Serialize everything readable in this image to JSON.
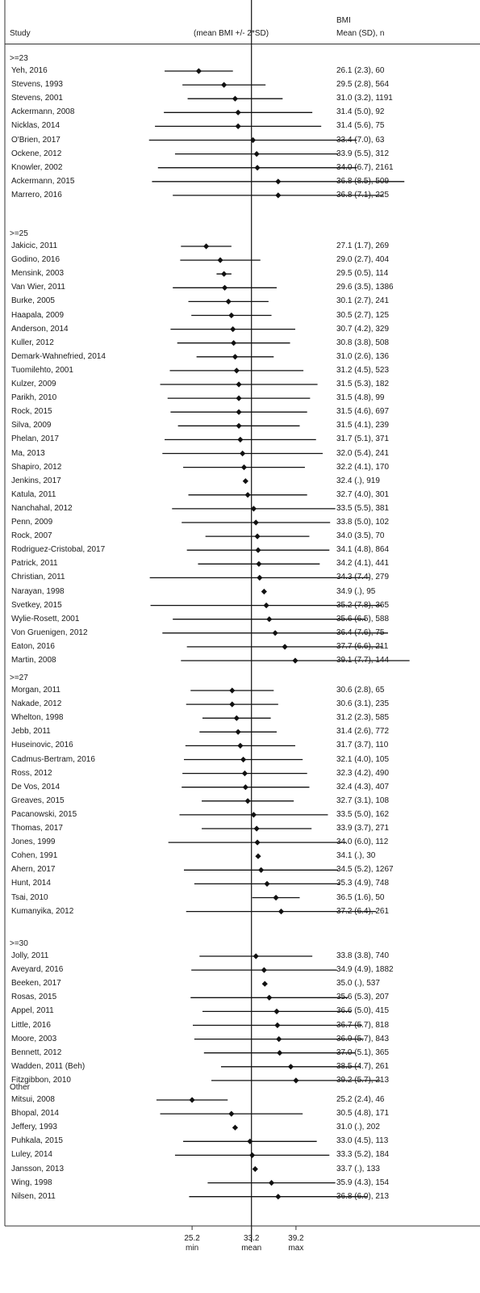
{
  "header": {
    "study": "Study",
    "plot": "(mean BMI +/- 2*SD)",
    "bmi": "BMI",
    "stats": "Mean (SD), n"
  },
  "chart_data": {
    "type": "forest",
    "reference_line": 33.2,
    "x_axis": {
      "ticks": [
        {
          "value": 25.2,
          "label": "25.2",
          "sublabel": "min"
        },
        {
          "value": 33.2,
          "label": "33.2",
          "sublabel": "mean"
        },
        {
          "value": 39.2,
          "label": "39.2",
          "sublabel": "max"
        }
      ]
    },
    "groups": [
      {
        "label": ">=23",
        "studies": [
          {
            "study": "Yeh, 2016",
            "mean": 26.1,
            "sd": 2.3,
            "n": 60,
            "text": "26.1 (2.3), 60"
          },
          {
            "study": "Stevens, 1993",
            "mean": 29.5,
            "sd": 2.8,
            "n": 564,
            "text": "29.5 (2.8), 564"
          },
          {
            "study": "Stevens, 2001",
            "mean": 31.0,
            "sd": 3.2,
            "n": 1191,
            "text": "31.0 (3.2), 1191"
          },
          {
            "study": "Ackermann, 2008",
            "mean": 31.4,
            "sd": 5.0,
            "n": 92,
            "text": "31.4 (5.0), 92"
          },
          {
            "study": "Nicklas, 2014",
            "mean": 31.4,
            "sd": 5.6,
            "n": 75,
            "text": "31.4 (5.6), 75"
          },
          {
            "study": "O'Brien, 2017",
            "mean": 33.4,
            "sd": 7.0,
            "n": 63,
            "text": "33.4 (7.0), 63"
          },
          {
            "study": "Ockene, 2012",
            "mean": 33.9,
            "sd": 5.5,
            "n": 312,
            "text": "33.9 (5.5), 312"
          },
          {
            "study": "Knowler, 2002",
            "mean": 34.0,
            "sd": 6.7,
            "n": 2161,
            "text": "34.0 (6.7), 2161"
          },
          {
            "study": "Ackermann, 2015",
            "mean": 36.8,
            "sd": 8.5,
            "n": 509,
            "text": "36.8 (8.5), 509"
          },
          {
            "study": "Marrero, 2016",
            "mean": 36.8,
            "sd": 7.1,
            "n": 225,
            "text": "36.8 (7.1), 225"
          }
        ]
      },
      {
        "label": ">=25",
        "studies": [
          {
            "study": "Jakicic, 2011",
            "mean": 27.1,
            "sd": 1.7,
            "n": 269,
            "text": "27.1 (1.7), 269"
          },
          {
            "study": "Godino, 2016",
            "mean": 29.0,
            "sd": 2.7,
            "n": 404,
            "text": "29.0 (2.7), 404"
          },
          {
            "study": "Mensink, 2003",
            "mean": 29.5,
            "sd": 0.5,
            "n": 114,
            "text": "29.5 (0.5), 114"
          },
          {
            "study": "Van Wier, 2011",
            "mean": 29.6,
            "sd": 3.5,
            "n": 1386,
            "text": "29.6 (3.5), 1386"
          },
          {
            "study": "Burke, 2005",
            "mean": 30.1,
            "sd": 2.7,
            "n": 241,
            "text": "30.1 (2.7), 241"
          },
          {
            "study": "Haapala, 2009",
            "mean": 30.5,
            "sd": 2.7,
            "n": 125,
            "text": "30.5 (2.7), 125"
          },
          {
            "study": "Anderson, 2014",
            "mean": 30.7,
            "sd": 4.2,
            "n": 329,
            "text": "30.7 (4.2), 329"
          },
          {
            "study": "Kuller, 2012",
            "mean": 30.8,
            "sd": 3.8,
            "n": 508,
            "text": "30.8 (3.8), 508"
          },
          {
            "study": "Demark-Wahnefried, 2014",
            "mean": 31.0,
            "sd": 2.6,
            "n": 136,
            "text": "31.0 (2.6), 136"
          },
          {
            "study": "Tuomilehto, 2001",
            "mean": 31.2,
            "sd": 4.5,
            "n": 523,
            "text": "31.2 (4.5), 523"
          },
          {
            "study": "Kulzer, 2009",
            "mean": 31.5,
            "sd": 5.3,
            "n": 182,
            "text": "31.5 (5.3), 182"
          },
          {
            "study": "Parikh, 2010",
            "mean": 31.5,
            "sd": 4.8,
            "n": 99,
            "text": "31.5 (4.8), 99"
          },
          {
            "study": "Rock, 2015",
            "mean": 31.5,
            "sd": 4.6,
            "n": 697,
            "text": "31.5 (4.6), 697"
          },
          {
            "study": "Silva, 2009",
            "mean": 31.5,
            "sd": 4.1,
            "n": 239,
            "text": "31.5 (4.1), 239"
          },
          {
            "study": "Phelan, 2017",
            "mean": 31.7,
            "sd": 5.1,
            "n": 371,
            "text": "31.7 (5.1), 371"
          },
          {
            "study": "Ma, 2013",
            "mean": 32.0,
            "sd": 5.4,
            "n": 241,
            "text": "32.0 (5.4), 241"
          },
          {
            "study": "Shapiro, 2012",
            "mean": 32.2,
            "sd": 4.1,
            "n": 170,
            "text": "32.2 (4.1), 170"
          },
          {
            "study": "Jenkins, 2017",
            "mean": 32.4,
            "sd": null,
            "n": 919,
            "text": "32.4 (.), 919"
          },
          {
            "study": "Katula, 2011",
            "mean": 32.7,
            "sd": 4.0,
            "n": 301,
            "text": "32.7 (4.0), 301"
          },
          {
            "study": "Nanchahal, 2012",
            "mean": 33.5,
            "sd": 5.5,
            "n": 381,
            "text": "33.5 (5.5), 381"
          },
          {
            "study": "Penn, 2009",
            "mean": 33.8,
            "sd": 5.0,
            "n": 102,
            "text": "33.8 (5.0), 102"
          },
          {
            "study": "Rock, 2007",
            "mean": 34.0,
            "sd": 3.5,
            "n": 70,
            "text": "34.0 (3.5), 70"
          },
          {
            "study": "Rodriguez-Cristobal, 2017",
            "mean": 34.1,
            "sd": 4.8,
            "n": 864,
            "text": "34.1 (4.8), 864"
          },
          {
            "study": "Patrick, 2011",
            "mean": 34.2,
            "sd": 4.1,
            "n": 441,
            "text": "34.2 (4.1), 441"
          },
          {
            "study": "Christian, 2011",
            "mean": 34.3,
            "sd": 7.4,
            "n": 279,
            "text": "34.3 (7.4), 279"
          },
          {
            "study": "Narayan, 1998",
            "mean": 34.9,
            "sd": null,
            "n": 95,
            "text": "34.9 (.), 95"
          },
          {
            "study": "Svetkey, 2015",
            "mean": 35.2,
            "sd": 7.8,
            "n": 365,
            "text": "35.2 (7.8), 365"
          },
          {
            "study": "Wylie-Rosett, 2001",
            "mean": 35.6,
            "sd": 6.5,
            "n": 588,
            "text": "35.6 (6.5), 588"
          },
          {
            "study": "Von Gruenigen, 2012",
            "mean": 36.4,
            "sd": 7.6,
            "n": 75,
            "text": "36.4 (7.6), 75"
          },
          {
            "study": "Eaton, 2016",
            "mean": 37.7,
            "sd": 6.6,
            "n": 211,
            "text": "37.7 (6.6), 211"
          },
          {
            "study": "Martin, 2008",
            "mean": 39.1,
            "sd": 7.7,
            "n": 144,
            "text": "39.1 (7.7), 144"
          }
        ]
      },
      {
        "label": ">=27",
        "studies": [
          {
            "study": "Morgan, 2011",
            "mean": 30.6,
            "sd": 2.8,
            "n": 65,
            "text": "30.6 (2.8), 65"
          },
          {
            "study": "Nakade, 2012",
            "mean": 30.6,
            "sd": 3.1,
            "n": 235,
            "text": "30.6 (3.1), 235"
          },
          {
            "study": "Whelton, 1998",
            "mean": 31.2,
            "sd": 2.3,
            "n": 585,
            "text": "31.2 (2.3), 585"
          },
          {
            "study": "Jebb, 2011",
            "mean": 31.4,
            "sd": 2.6,
            "n": 772,
            "text": "31.4 (2.6), 772"
          },
          {
            "study": "Huseinovic, 2016",
            "mean": 31.7,
            "sd": 3.7,
            "n": 110,
            "text": "31.7 (3.7), 110"
          },
          {
            "study": "Cadmus-Bertram, 2016",
            "mean": 32.1,
            "sd": 4.0,
            "n": 105,
            "text": "32.1 (4.0), 105"
          },
          {
            "study": "Ross, 2012",
            "mean": 32.3,
            "sd": 4.2,
            "n": 490,
            "text": "32.3 (4.2), 490"
          },
          {
            "study": "De Vos, 2014",
            "mean": 32.4,
            "sd": 4.3,
            "n": 407,
            "text": "32.4 (4.3), 407"
          },
          {
            "study": "Greaves, 2015",
            "mean": 32.7,
            "sd": 3.1,
            "n": 108,
            "text": "32.7 (3.1), 108"
          },
          {
            "study": "Pacanowski, 2015",
            "mean": 33.5,
            "sd": 5.0,
            "n": 162,
            "text": "33.5 (5.0), 162"
          },
          {
            "study": "Thomas, 2017",
            "mean": 33.9,
            "sd": 3.7,
            "n": 271,
            "text": "33.9 (3.7), 271"
          },
          {
            "study": "Jones, 1999",
            "mean": 34.0,
            "sd": 6.0,
            "n": 112,
            "text": "34.0 (6.0), 112"
          },
          {
            "study": "Cohen, 1991",
            "mean": 34.1,
            "sd": null,
            "n": 30,
            "text": "34.1 (.), 30"
          },
          {
            "study": "Ahern, 2017",
            "mean": 34.5,
            "sd": 5.2,
            "n": 1267,
            "text": "34.5 (5.2), 1267"
          },
          {
            "study": "Hunt, 2014",
            "mean": 35.3,
            "sd": 4.9,
            "n": 748,
            "text": "35.3 (4.9), 748"
          },
          {
            "study": "Tsai, 2010",
            "mean": 36.5,
            "sd": 1.6,
            "n": 50,
            "text": "36.5 (1.6), 50"
          },
          {
            "study": "Kumanyika, 2012",
            "mean": 37.2,
            "sd": 6.4,
            "n": 261,
            "text": "37.2 (6.4), 261"
          }
        ]
      },
      {
        "label": ">=30",
        "studies": [
          {
            "study": "Jolly, 2011",
            "mean": 33.8,
            "sd": 3.8,
            "n": 740,
            "text": "33.8 (3.8), 740"
          },
          {
            "study": "Aveyard, 2016",
            "mean": 34.9,
            "sd": 4.9,
            "n": 1882,
            "text": "34.9 (4.9), 1882"
          },
          {
            "study": "Beeken, 2017",
            "mean": 35.0,
            "sd": null,
            "n": 537,
            "text": "35.0 (.), 537"
          },
          {
            "study": "Rosas, 2015",
            "mean": 35.6,
            "sd": 5.3,
            "n": 207,
            "text": "35.6 (5.3), 207"
          },
          {
            "study": "Appel, 2011",
            "mean": 36.6,
            "sd": 5.0,
            "n": 415,
            "text": "36.6 (5.0), 415"
          },
          {
            "study": "Little, 2016",
            "mean": 36.7,
            "sd": 5.7,
            "n": 818,
            "text": "36.7 (5.7), 818"
          },
          {
            "study": "Moore, 2003",
            "mean": 36.9,
            "sd": 5.7,
            "n": 843,
            "text": "36.9 (5.7), 843"
          },
          {
            "study": "Bennett, 2012",
            "mean": 37.0,
            "sd": 5.1,
            "n": 365,
            "text": "37.0 (5.1), 365"
          },
          {
            "study": "Wadden, 2011 (Beh)",
            "mean": 38.5,
            "sd": 4.7,
            "n": 261,
            "text": "38.5 (4.7), 261"
          },
          {
            "study": "Fitzgibbon, 2010",
            "mean": 39.2,
            "sd": 5.7,
            "n": 213,
            "text": "39.2 (5.7), 213"
          }
        ]
      },
      {
        "label": "Other",
        "studies": [
          {
            "study": "Mitsui, 2008",
            "mean": 25.2,
            "sd": 2.4,
            "n": 46,
            "text": "25.2 (2.4), 46"
          },
          {
            "study": "Bhopal, 2014",
            "mean": 30.5,
            "sd": 4.8,
            "n": 171,
            "text": "30.5 (4.8), 171"
          },
          {
            "study": "Jeffery, 1993",
            "mean": 31.0,
            "sd": null,
            "n": 202,
            "text": "31.0 (.), 202"
          },
          {
            "study": "Puhkala, 2015",
            "mean": 33.0,
            "sd": 4.5,
            "n": 113,
            "text": "33.0 (4.5), 113"
          },
          {
            "study": "Luley, 2014",
            "mean": 33.3,
            "sd": 5.2,
            "n": 184,
            "text": "33.3 (5.2), 184"
          },
          {
            "study": "Jansson, 2013",
            "mean": 33.7,
            "sd": null,
            "n": 133,
            "text": "33.7 (.), 133"
          },
          {
            "study": "Wing, 1998",
            "mean": 35.9,
            "sd": 4.3,
            "n": 154,
            "text": "35.9 (4.3), 154"
          },
          {
            "study": "Nilsen, 2011",
            "mean": 36.8,
            "sd": 6.0,
            "n": 213,
            "text": "36.8 (6.0), 213"
          }
        ]
      }
    ]
  }
}
